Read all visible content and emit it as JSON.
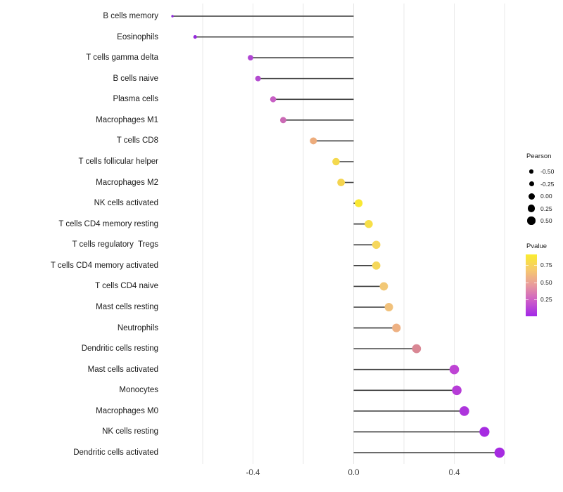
{
  "chart_data": {
    "type": "lollipop",
    "title": "",
    "xlabel": "",
    "ylabel": "",
    "xlim": [
      -0.76,
      0.6
    ],
    "grid": true,
    "gridline_values": [
      -0.6,
      -0.4,
      -0.2,
      0.0,
      0.2,
      0.4,
      0.6
    ],
    "x_ticks": [
      {
        "value": -0.4,
        "label": "-0.4"
      },
      {
        "value": 0.0,
        "label": "0.0"
      },
      {
        "value": 0.4,
        "label": "0.4"
      }
    ],
    "points": [
      {
        "category": "B cells memory",
        "pearson": -0.72,
        "dot_color": "#8F2BD9"
      },
      {
        "category": "Eosinophils",
        "pearson": -0.63,
        "dot_color": "#9529DC"
      },
      {
        "category": "T cells gamma delta",
        "pearson": -0.41,
        "dot_color": "#B044D4"
      },
      {
        "category": "B cells naive",
        "pearson": -0.38,
        "dot_color": "#B34BD0"
      },
      {
        "category": "Plasma cells",
        "pearson": -0.32,
        "dot_color": "#C75FC4"
      },
      {
        "category": "Macrophages M1",
        "pearson": -0.28,
        "dot_color": "#CB69B5"
      },
      {
        "category": "T cells CD8",
        "pearson": -0.16,
        "dot_color": "#EDAC7C"
      },
      {
        "category": "T cells follicular helper",
        "pearson": -0.07,
        "dot_color": "#F4D94E"
      },
      {
        "category": "Macrophages M2",
        "pearson": -0.05,
        "dot_color": "#F4D44F"
      },
      {
        "category": "NK cells activated",
        "pearson": 0.02,
        "dot_color": "#F9E832"
      },
      {
        "category": "T cells CD4 memory resting",
        "pearson": 0.06,
        "dot_color": "#F7DF48"
      },
      {
        "category": "T cells regulatory  Tregs",
        "pearson": 0.09,
        "dot_color": "#F6D75C"
      },
      {
        "category": "T cells CD4 memory activated",
        "pearson": 0.09,
        "dot_color": "#F5D75A"
      },
      {
        "category": "T cells CD4 naive",
        "pearson": 0.12,
        "dot_color": "#F2C876"
      },
      {
        "category": "Mast cells resting",
        "pearson": 0.14,
        "dot_color": "#F1C17B"
      },
      {
        "category": "Neutrophils",
        "pearson": 0.17,
        "dot_color": "#EEB183"
      },
      {
        "category": "Dendritic cells resting",
        "pearson": 0.25,
        "dot_color": "#D98794"
      },
      {
        "category": "Mast cells activated",
        "pearson": 0.4,
        "dot_color": "#BE44D4"
      },
      {
        "category": "Monocytes",
        "pearson": 0.41,
        "dot_color": "#B63CD7"
      },
      {
        "category": "Macrophages M0",
        "pearson": 0.44,
        "dot_color": "#AD35DC"
      },
      {
        "category": "NK cells resting",
        "pearson": 0.52,
        "dot_color": "#A62BE1"
      },
      {
        "category": "Dendritic cells activated",
        "pearson": 0.58,
        "dot_color": "#A62BE1"
      }
    ],
    "legend_size": {
      "title": "Pearson",
      "entries": [
        {
          "label": "-0.50",
          "diameter": 5.5
        },
        {
          "label": "-0.25",
          "diameter": 7
        },
        {
          "label": "0.00",
          "diameter": 9
        },
        {
          "label": "0.25",
          "diameter": 10.5
        },
        {
          "label": "0.50",
          "diameter": 11.5
        }
      ]
    },
    "legend_color": {
      "title": "Pvalue",
      "labels": [
        "0.75",
        "0.50",
        "0.25"
      ],
      "gradient_top_to_bottom": [
        "#FAEC2F",
        "#F6C96E",
        "#E8999E",
        "#CD5DC8",
        "#A228E8"
      ]
    },
    "colors": {
      "segment": "#3a3a3a",
      "gridline": "#e9e9e9",
      "background": "#ffffff"
    }
  }
}
